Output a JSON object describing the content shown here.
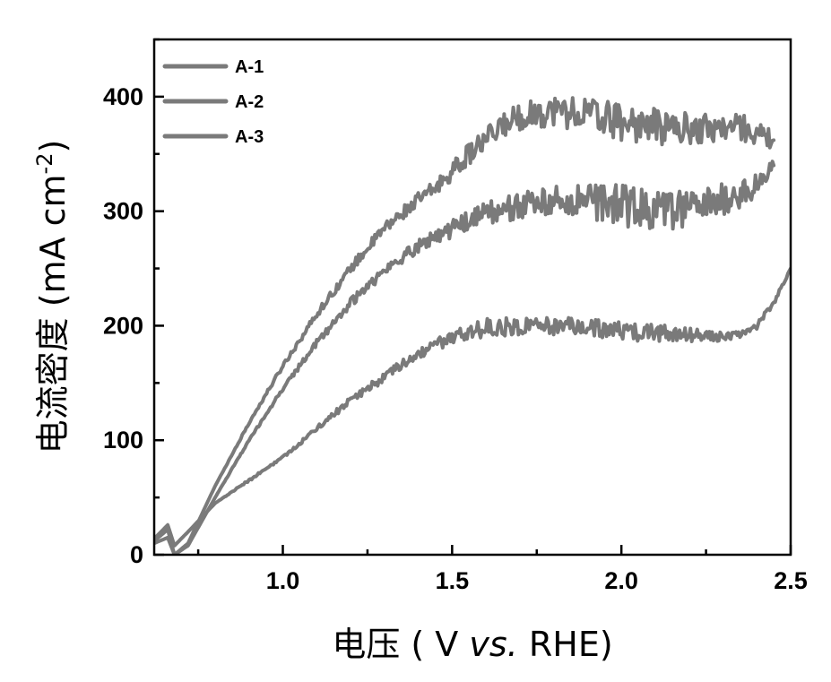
{
  "chart_data": {
    "type": "line",
    "title": "",
    "xlabel": {
      "prefix": "电压 ( V ",
      "italic": "vs.",
      "suffix": " RHE)"
    },
    "ylabel": {
      "main": "电流密度 (mA cm",
      "superscript": "-2",
      "close": ")"
    },
    "xlim": [
      0.62,
      2.5
    ],
    "ylim": [
      0,
      450
    ],
    "x_ticks": [
      1.0,
      1.5,
      2.0,
      2.5
    ],
    "x_tick_labels": [
      "1.0",
      "1.5",
      "2.0",
      "2.5"
    ],
    "y_ticks": [
      0,
      100,
      200,
      300,
      400
    ],
    "y_tick_labels": [
      "0",
      "100",
      "200",
      "300",
      "400"
    ],
    "legend_position": "top-left",
    "line_color": "#7a7a7a",
    "series": [
      {
        "name": "A-1",
        "x": [
          0.62,
          0.66,
          0.68,
          0.72,
          0.8,
          0.9,
          1.0,
          1.1,
          1.2,
          1.3,
          1.4,
          1.45,
          1.5,
          1.55,
          1.6,
          1.65,
          1.7,
          1.8,
          1.9,
          2.0,
          2.1,
          2.2,
          2.3,
          2.35,
          2.4,
          2.45
        ],
        "y": [
          12,
          22,
          0,
          10,
          60,
          115,
          165,
          210,
          250,
          285,
          310,
          320,
          335,
          350,
          362,
          375,
          383,
          388,
          385,
          378,
          374,
          372,
          373,
          374,
          368,
          362
        ],
        "noise": [
          0,
          0,
          0,
          0,
          0,
          1,
          2,
          3,
          4,
          5,
          6,
          7,
          8,
          9,
          10,
          11,
          12,
          14,
          16,
          16,
          16,
          14,
          12,
          12,
          10,
          8
        ]
      },
      {
        "name": "A-2",
        "x": [
          0.62,
          0.66,
          0.68,
          0.72,
          0.8,
          0.9,
          1.0,
          1.1,
          1.2,
          1.3,
          1.4,
          1.5,
          1.6,
          1.7,
          1.8,
          1.9,
          2.0,
          2.1,
          2.2,
          2.3,
          2.4,
          2.45
        ],
        "y": [
          10,
          15,
          0,
          8,
          50,
          100,
          145,
          185,
          220,
          248,
          270,
          285,
          298,
          305,
          308,
          310,
          305,
          300,
          302,
          310,
          320,
          340
        ],
        "noise": [
          0,
          0,
          0,
          0,
          0,
          1,
          2,
          3,
          4,
          5,
          6,
          8,
          10,
          12,
          14,
          16,
          18,
          18,
          16,
          14,
          12,
          10
        ]
      },
      {
        "name": "A-3",
        "x": [
          0.62,
          0.66,
          0.68,
          0.72,
          0.8,
          0.9,
          1.0,
          1.1,
          1.2,
          1.3,
          1.4,
          1.5,
          1.6,
          1.7,
          1.8,
          1.9,
          2.0,
          2.1,
          2.2,
          2.3,
          2.35,
          2.4,
          2.45,
          2.5
        ],
        "y": [
          14,
          26,
          8,
          20,
          45,
          65,
          85,
          110,
          135,
          155,
          175,
          190,
          198,
          200,
          200,
          198,
          195,
          194,
          192,
          190,
          192,
          200,
          220,
          250
        ],
        "noise": [
          0,
          0,
          0,
          0,
          0,
          1,
          1,
          2,
          3,
          4,
          5,
          6,
          8,
          8,
          8,
          8,
          8,
          8,
          6,
          4,
          3,
          3,
          2,
          1
        ]
      }
    ]
  }
}
